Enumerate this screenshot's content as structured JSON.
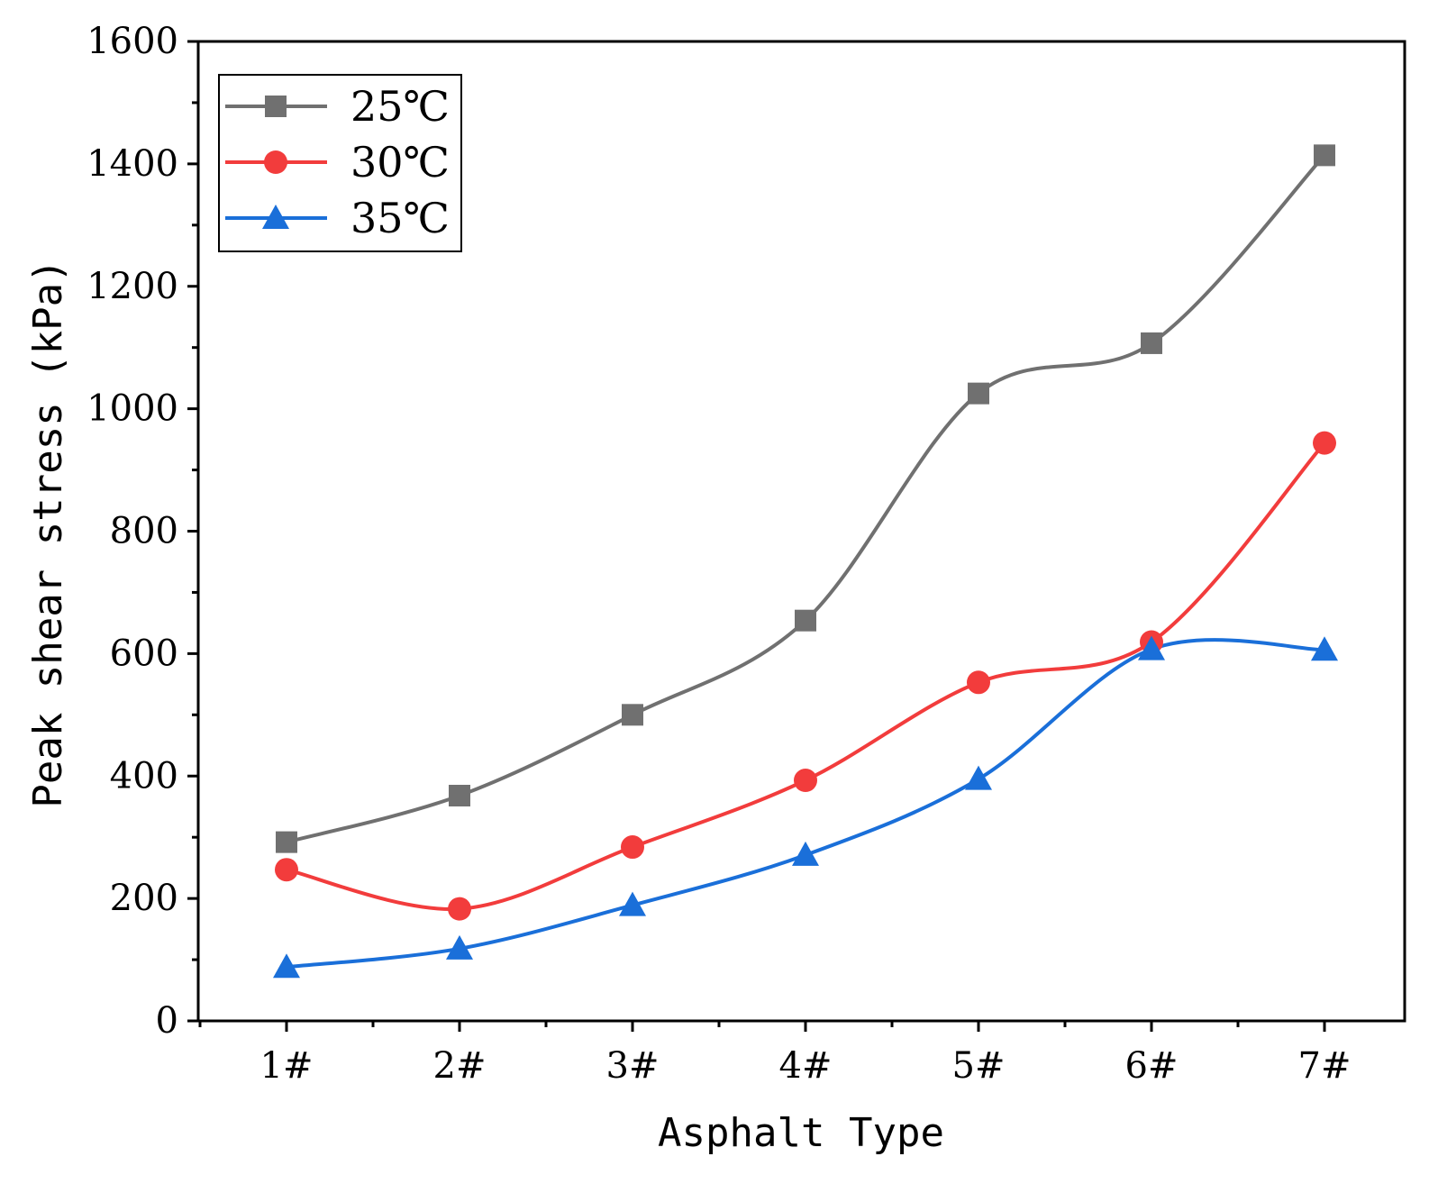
{
  "chart_data": {
    "type": "line",
    "title": "",
    "xlabel": "Asphalt Type",
    "ylabel": "Peak shear stress (kPa)",
    "categories": [
      "1#",
      "2#",
      "3#",
      "4#",
      "5#",
      "6#",
      "7#"
    ],
    "ylim": [
      0,
      1600
    ],
    "yticks": [
      0,
      200,
      400,
      600,
      800,
      1000,
      1200,
      1400,
      1600
    ],
    "ytick_labels": [
      "0",
      "200",
      "400",
      "600",
      "800",
      "1000",
      "1200",
      "1400",
      "1600"
    ],
    "grid": false,
    "legend_position": "top-left",
    "series": [
      {
        "name": "25℃",
        "marker": "square",
        "color": "#707070",
        "values": [
          292,
          368,
          500,
          654,
          1025,
          1107,
          1414
        ]
      },
      {
        "name": "30℃",
        "marker": "circle",
        "color": "#f23c3c",
        "values": [
          247,
          183,
          284,
          393,
          553,
          619,
          944
        ]
      },
      {
        "name": "35℃",
        "marker": "triangle",
        "color": "#1a6fd9",
        "values": [
          88,
          118,
          189,
          271,
          395,
          607,
          606
        ]
      }
    ]
  }
}
